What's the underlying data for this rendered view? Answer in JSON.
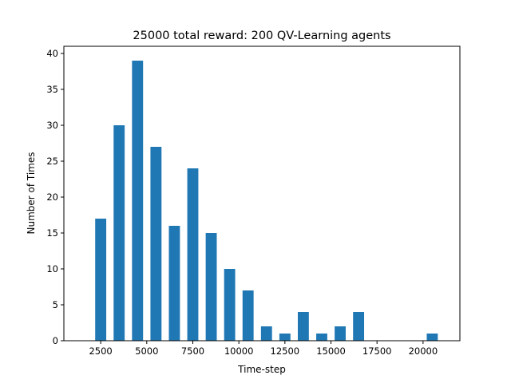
{
  "chart_data": {
    "type": "bar",
    "title": "25000 total reward: 200 QV-Learning agents",
    "xlabel": "Time-step",
    "ylabel": "Number of Times",
    "xlim": [
      500,
      22000
    ],
    "ylim": [
      0,
      41
    ],
    "xticks": [
      2500,
      5000,
      7500,
      10000,
      12500,
      15000,
      17500,
      20000
    ],
    "yticks": [
      0,
      5,
      10,
      15,
      20,
      25,
      30,
      35,
      40
    ],
    "bar_width": 600,
    "grid": false,
    "color": "#1f77b4",
    "x": [
      2500,
      3500,
      4500,
      5500,
      6500,
      7500,
      8500,
      9500,
      10500,
      11500,
      12500,
      13500,
      14500,
      15500,
      16500,
      20500
    ],
    "values": [
      17,
      30,
      39,
      27,
      16,
      24,
      15,
      10,
      7,
      2,
      1,
      4,
      1,
      2,
      4,
      1
    ]
  }
}
